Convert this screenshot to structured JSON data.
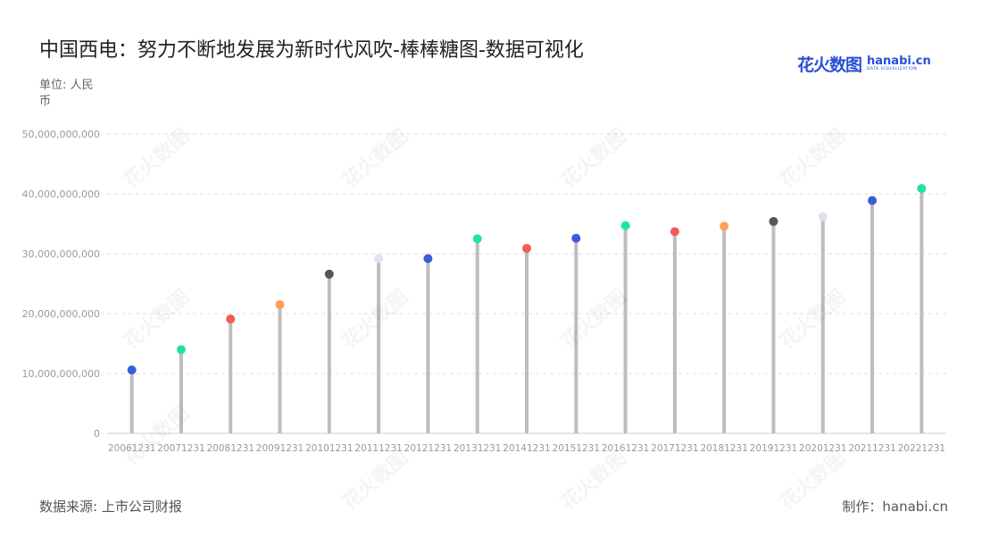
{
  "header": {
    "title": "中国西电：努力不断地发展为新时代风吹-棒棒糖图-数据可视化",
    "unit_label": "单位: 人民币"
  },
  "logo": {
    "text_cn": "花火数图",
    "text_en": "hanabi.cn",
    "text_sub": "DATA VISUALIZATION"
  },
  "footer": {
    "source": "数据来源: 上市公司财报",
    "credit": "制作：hanabi.cn"
  },
  "colors": {
    "stick": "#bdbdbd",
    "grid": "#dddddd",
    "axis_text": "#9a9a9a",
    "palette": [
      "#3b5bdb",
      "#20e3a2",
      "#f25c54",
      "#ff9f5a",
      "#555561",
      "#dde3ee"
    ]
  },
  "chart_data": {
    "type": "lollipop",
    "categories": [
      "20061231",
      "20071231",
      "20081231",
      "20091231",
      "20101231",
      "20111231",
      "20121231",
      "20131231",
      "20141231",
      "20151231",
      "20161231",
      "20171231",
      "20181231",
      "20191231",
      "20201231",
      "20211231",
      "20221231"
    ],
    "values": [
      10600000000,
      14000000000,
      19100000000,
      21500000000,
      26600000000,
      29200000000,
      29200000000,
      32500000000,
      30900000000,
      32600000000,
      34700000000,
      33700000000,
      34600000000,
      35400000000,
      36200000000,
      38900000000,
      40900000000
    ],
    "point_colors": [
      "#3b5bdb",
      "#20e3a2",
      "#f25c54",
      "#ff9f5a",
      "#555561",
      "#dde3ee",
      "#3b5bdb",
      "#20e3a2",
      "#f25c54",
      "#3b5bdb",
      "#20e3a2",
      "#f25c54",
      "#ff9f5a",
      "#555561",
      "#dde3ee",
      "#3b5bdb",
      "#20e3a2"
    ],
    "yticks": [
      "0",
      "10,000,000,000",
      "20,000,000,000",
      "30,000,000,000",
      "40,000,000,000",
      "50,000,000,000"
    ],
    "ytick_values": [
      0,
      10000000000,
      20000000000,
      30000000000,
      40000000000,
      50000000000
    ],
    "ylim": [
      0,
      50000000000
    ],
    "grid": true
  }
}
